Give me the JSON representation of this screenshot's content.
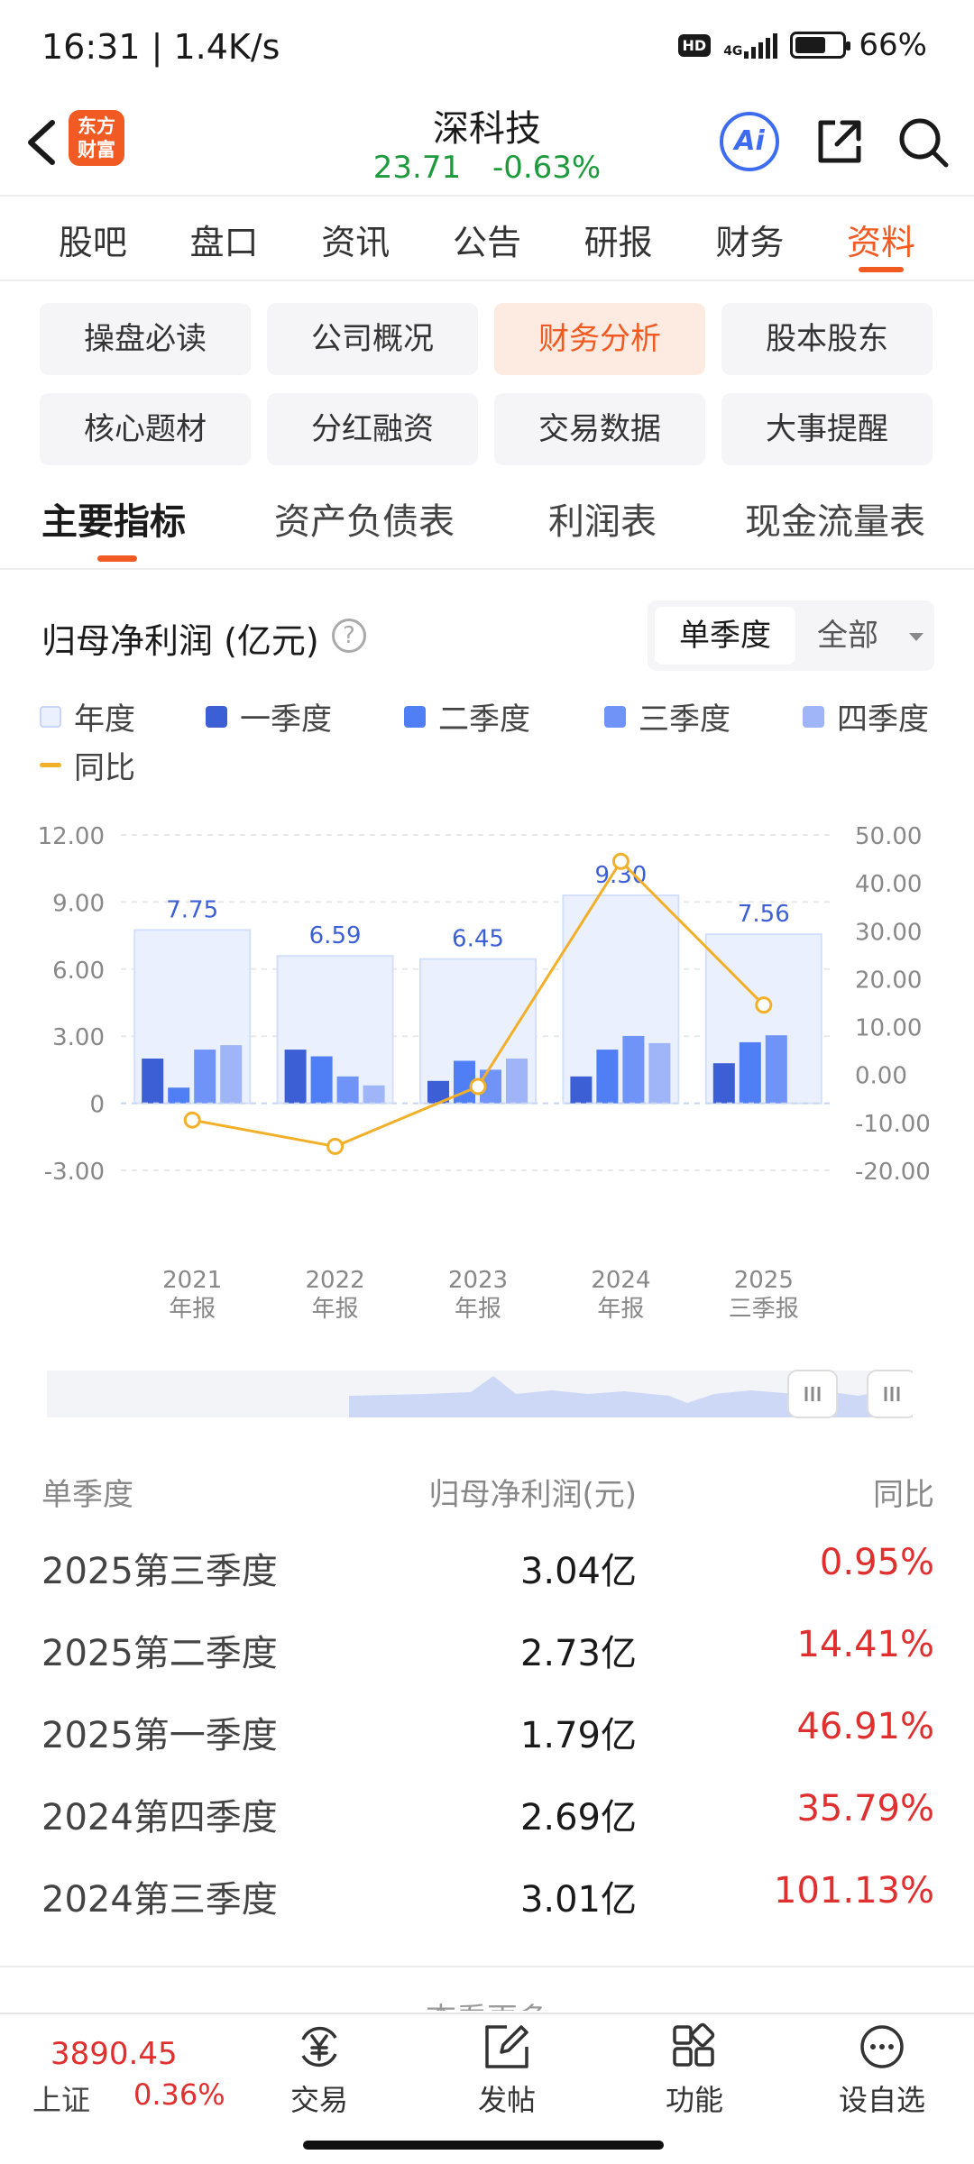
{
  "status": {
    "time": "16:31 | 1.4K/s",
    "battery": "66%",
    "network": "4G",
    "hd": "HD"
  },
  "header": {
    "logo_line1": "东方",
    "logo_line2": "财富",
    "stock_name": "深科技",
    "price": "23.71",
    "change": "-0.63%",
    "ai_label": "Ai",
    "quote_color": "#1d9b3c"
  },
  "tabs": [
    {
      "label": "股吧"
    },
    {
      "label": "盘口"
    },
    {
      "label": "资讯"
    },
    {
      "label": "公告"
    },
    {
      "label": "研报"
    },
    {
      "label": "财务"
    },
    {
      "label": "资料",
      "active": true
    }
  ],
  "chips": [
    {
      "label": "操盘必读"
    },
    {
      "label": "公司概况"
    },
    {
      "label": "财务分析",
      "active": true
    },
    {
      "label": "股本股东"
    },
    {
      "label": "核心题材"
    },
    {
      "label": "分红融资"
    },
    {
      "label": "交易数据"
    },
    {
      "label": "大事提醒"
    }
  ],
  "subtabs": [
    {
      "label": "主要指标",
      "active": true
    },
    {
      "label": "资产负债表"
    },
    {
      "label": "利润表"
    },
    {
      "label": "现金流量表"
    }
  ],
  "chart_header": {
    "title": "归母净利润 (亿元)",
    "help": "?",
    "seg_option1": "单季度",
    "seg_option2": "全部"
  },
  "legend": [
    {
      "label": "年度",
      "color": "#eaf0fd"
    },
    {
      "label": "一季度",
      "color": "#3d5fd6"
    },
    {
      "label": "二季度",
      "color": "#4f7ef5"
    },
    {
      "label": "三季度",
      "color": "#6f93f7"
    },
    {
      "label": "四季度",
      "color": "#9fb5f8"
    },
    {
      "label": "同比",
      "color": "#f2b02a"
    }
  ],
  "chart_data": {
    "type": "bar",
    "categories": [
      "2021\n年报",
      "2022\n年报",
      "2023\n年报",
      "2024\n年报",
      "2025\n三季报"
    ],
    "category_year": [
      "2021",
      "2022",
      "2023",
      "2024",
      "2025"
    ],
    "category_type": [
      "年报",
      "年报",
      "年报",
      "年报",
      "三季报"
    ],
    "series": [
      {
        "name": "年度",
        "values": [
          7.75,
          6.59,
          6.45,
          9.3,
          7.56
        ],
        "labels": [
          "7.75",
          "6.59",
          "6.45",
          "9.30",
          "7.56"
        ]
      },
      {
        "name": "一季度",
        "values": [
          2.0,
          2.4,
          1.0,
          1.2,
          1.79
        ]
      },
      {
        "name": "二季度",
        "values": [
          0.7,
          2.1,
          1.9,
          2.4,
          2.73
        ]
      },
      {
        "name": "三季度",
        "values": [
          2.4,
          1.2,
          1.5,
          3.01,
          3.04
        ]
      },
      {
        "name": "四季度",
        "values": [
          2.6,
          0.8,
          2.0,
          2.69,
          null
        ]
      }
    ],
    "line": {
      "name": "同比",
      "values": [
        -9.5,
        -15,
        -2.5,
        44.5,
        14.5
      ]
    },
    "y_left": {
      "ticks": [
        "12.00",
        "9.00",
        "6.00",
        "3.00",
        "0",
        "-3.00"
      ],
      "range": [
        -3,
        12
      ]
    },
    "y_right": {
      "ticks": [
        "50.00",
        "40.00",
        "30.00",
        "20.00",
        "10.00",
        "0.00",
        "-10.00",
        "-20.00"
      ],
      "range": [
        -20,
        50
      ]
    },
    "grid": true
  },
  "table": {
    "headers": [
      "单季度",
      "归母净利润(元)",
      "同比"
    ],
    "rows": [
      {
        "period": "2025第三季度",
        "value": "3.04亿",
        "yoy": "0.95%"
      },
      {
        "period": "2025第二季度",
        "value": "2.73亿",
        "yoy": "14.41%"
      },
      {
        "period": "2025第一季度",
        "value": "1.79亿",
        "yoy": "46.91%"
      },
      {
        "period": "2024第四季度",
        "value": "2.69亿",
        "yoy": "35.79%"
      },
      {
        "period": "2024第三季度",
        "value": "3.01亿",
        "yoy": "101.13%"
      }
    ],
    "more": "查看更多"
  },
  "bottom": {
    "index_value": "3890.45",
    "index_name": "上证",
    "index_change": "0.36%",
    "nav": [
      {
        "label": "交易"
      },
      {
        "label": "发帖"
      },
      {
        "label": "功能"
      },
      {
        "label": "设自选"
      }
    ]
  }
}
